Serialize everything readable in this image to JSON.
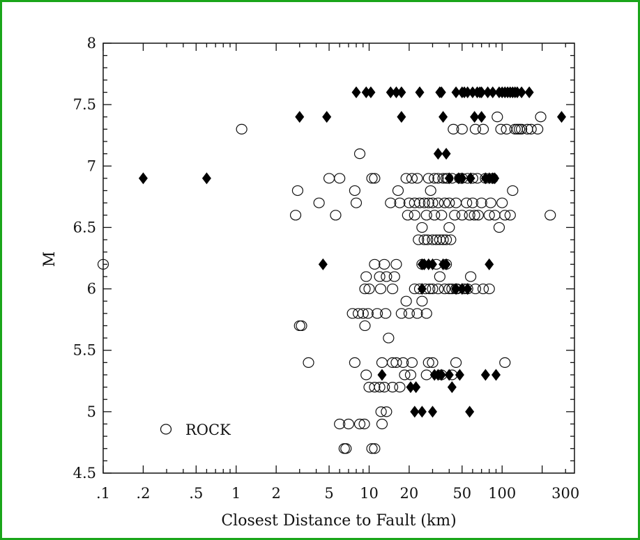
{
  "colors": {
    "frame": "#1aa51a",
    "ink": "#111111",
    "marker_fill": "#000000"
  },
  "chart_data": {
    "type": "scatter",
    "title": "",
    "xlabel": "Closest Distance to Fault (km)",
    "ylabel": "M",
    "xscale": "log",
    "xlim": [
      0.1,
      350
    ],
    "ylim": [
      4.5,
      8
    ],
    "grid": false,
    "legend": {
      "position": "bottom-left",
      "entries": [
        {
          "name": "ROCK",
          "marker": "open-circle"
        }
      ]
    },
    "x_tick_labels": [
      {
        "value": 0.1,
        "label": ".1"
      },
      {
        "value": 0.2,
        "label": ".2"
      },
      {
        "value": 0.5,
        "label": ".5"
      },
      {
        "value": 1,
        "label": "1"
      },
      {
        "value": 2,
        "label": "2"
      },
      {
        "value": 5,
        "label": "5"
      },
      {
        "value": 10,
        "label": "10"
      },
      {
        "value": 20,
        "label": "20"
      },
      {
        "value": 50,
        "label": "50"
      },
      {
        "value": 100,
        "label": "100"
      },
      {
        "value": 300,
        "label": "300"
      }
    ],
    "y_tick_labels": [
      {
        "value": 4.5,
        "label": "4.5"
      },
      {
        "value": 5,
        "label": "5"
      },
      {
        "value": 5.5,
        "label": "5.5"
      },
      {
        "value": 6,
        "label": "6"
      },
      {
        "value": 6.5,
        "label": "6.5"
      },
      {
        "value": 7,
        "label": "7"
      },
      {
        "value": 7.5,
        "label": "7.5"
      },
      {
        "value": 8,
        "label": "8"
      }
    ],
    "series": [
      {
        "name": "ROCK",
        "marker": "open-circle",
        "points": [
          [
            0.1,
            6.2
          ],
          [
            1.1,
            7.3
          ],
          [
            2.8,
            6.6
          ],
          [
            2.9,
            6.8
          ],
          [
            3,
            5.7
          ],
          [
            3.1,
            5.7
          ],
          [
            3.5,
            5.4
          ],
          [
            4.2,
            6.7
          ],
          [
            5,
            6.9
          ],
          [
            5.6,
            6.6
          ],
          [
            6,
            6.9
          ],
          [
            6,
            4.9
          ],
          [
            7,
            4.9
          ],
          [
            7.5,
            5.8
          ],
          [
            6.5,
            4.7
          ],
          [
            6.7,
            4.7
          ],
          [
            7.8,
            5.4
          ],
          [
            7.8,
            6.8
          ],
          [
            8,
            6.7
          ],
          [
            8.5,
            7.1
          ],
          [
            8.3,
            5.8
          ],
          [
            8.5,
            4.9
          ],
          [
            9,
            5.8
          ],
          [
            9.2,
            4.9
          ],
          [
            9.3,
            6
          ],
          [
            9.3,
            5.7
          ],
          [
            9.5,
            6.1
          ],
          [
            9.5,
            5.3
          ],
          [
            9.8,
            5.8
          ],
          [
            10,
            6
          ],
          [
            10,
            5.2
          ],
          [
            10.5,
            6.9
          ],
          [
            10.5,
            4.7
          ],
          [
            11,
            5.2
          ],
          [
            11,
            6.9
          ],
          [
            11,
            4.7
          ],
          [
            11,
            6.2
          ],
          [
            11.5,
            5.8
          ],
          [
            12,
            5.2
          ],
          [
            12,
            6.1
          ],
          [
            12.2,
            6
          ],
          [
            12.3,
            5
          ],
          [
            12.5,
            5.4
          ],
          [
            12.5,
            4.9
          ],
          [
            13,
            5.2
          ],
          [
            13,
            6.2
          ],
          [
            13.3,
            5.8
          ],
          [
            13.5,
            5
          ],
          [
            13.5,
            6.1
          ],
          [
            14,
            5.6
          ],
          [
            14.5,
            6.7
          ],
          [
            15,
            6
          ],
          [
            15,
            5.4
          ],
          [
            15,
            5.2
          ],
          [
            15.5,
            6.1
          ],
          [
            16,
            6.2
          ],
          [
            16,
            5.4
          ],
          [
            16.5,
            6.8
          ],
          [
            17,
            5.2
          ],
          [
            17,
            6.7
          ],
          [
            17.5,
            5.8
          ],
          [
            18,
            5.4
          ],
          [
            18.5,
            5.3
          ],
          [
            19,
            6.9
          ],
          [
            19,
            5.9
          ],
          [
            19.5,
            6.6
          ],
          [
            20,
            6.7
          ],
          [
            20,
            5.8
          ],
          [
            20.5,
            5.3
          ],
          [
            21,
            6.9
          ],
          [
            21,
            5.4
          ],
          [
            22,
            6.6
          ],
          [
            22,
            6
          ],
          [
            22,
            6.7
          ],
          [
            23,
            6.9
          ],
          [
            23,
            5.8
          ],
          [
            23.5,
            6.4
          ],
          [
            24,
            6.7
          ],
          [
            24,
            6
          ],
          [
            25,
            6.2
          ],
          [
            25,
            6.5
          ],
          [
            25,
            5.9
          ],
          [
            26,
            6.7
          ],
          [
            26,
            6.4
          ],
          [
            26.5,
            6
          ],
          [
            27,
            6.6
          ],
          [
            27,
            5.8
          ],
          [
            27,
            5.3
          ],
          [
            27.5,
            6.4
          ],
          [
            28,
            6.9
          ],
          [
            28,
            6.7
          ],
          [
            28,
            5.4
          ],
          [
            28.5,
            6
          ],
          [
            29,
            6.8
          ],
          [
            30,
            6.7
          ],
          [
            30,
            6.4
          ],
          [
            30,
            6
          ],
          [
            30,
            5.4
          ],
          [
            31,
            6.6
          ],
          [
            31,
            6.9
          ],
          [
            32,
            6.2
          ],
          [
            32,
            6.4
          ],
          [
            33,
            6
          ],
          [
            33,
            6.7
          ],
          [
            33,
            6.9
          ],
          [
            34,
            6.1
          ],
          [
            34,
            6.4
          ],
          [
            35,
            5.3
          ],
          [
            35,
            6.6
          ],
          [
            36,
            6.9
          ],
          [
            36,
            6.4
          ],
          [
            37,
            6.7
          ],
          [
            37,
            6
          ],
          [
            38,
            6.2
          ],
          [
            38,
            6.4
          ],
          [
            38,
            6.9
          ],
          [
            39,
            6.9
          ],
          [
            40,
            6.7
          ],
          [
            40,
            6
          ],
          [
            40,
            6.5
          ],
          [
            41,
            6.4
          ],
          [
            42,
            6
          ],
          [
            42,
            6.9
          ],
          [
            42,
            5.3
          ],
          [
            43,
            7.3
          ],
          [
            44,
            6.6
          ],
          [
            45,
            6.7
          ],
          [
            45,
            5.4
          ],
          [
            45,
            6
          ],
          [
            46,
            6
          ],
          [
            48,
            6.9
          ],
          [
            50,
            7.3
          ],
          [
            50,
            6.6
          ],
          [
            50,
            6.9
          ],
          [
            52,
            6
          ],
          [
            54,
            6.7
          ],
          [
            55,
            6.9
          ],
          [
            55,
            6
          ],
          [
            57,
            6.6
          ],
          [
            58,
            6.1
          ],
          [
            60,
            6.7
          ],
          [
            60,
            6.9
          ],
          [
            62,
            6.6
          ],
          [
            63,
            7.3
          ],
          [
            63,
            6
          ],
          [
            65,
            6.9
          ],
          [
            66,
            6.6
          ],
          [
            70,
            6.7
          ],
          [
            72,
            6
          ],
          [
            72,
            7.3
          ],
          [
            75,
            6.9
          ],
          [
            80,
            6.6
          ],
          [
            80,
            6
          ],
          [
            82,
            6.7
          ],
          [
            85,
            6.9
          ],
          [
            88,
            6.6
          ],
          [
            92,
            7.4
          ],
          [
            95,
            6.5
          ],
          [
            98,
            7.3
          ],
          [
            100,
            6.7
          ],
          [
            105,
            6.6
          ],
          [
            105,
            5.4
          ],
          [
            108,
            7.3
          ],
          [
            115,
            6.6
          ],
          [
            120,
            6.8
          ],
          [
            125,
            7.3
          ],
          [
            130,
            7.3
          ],
          [
            135,
            7.3
          ],
          [
            140,
            7.3
          ],
          [
            155,
            7.3
          ],
          [
            165,
            7.3
          ],
          [
            185,
            7.3
          ],
          [
            195,
            7.4
          ],
          [
            230,
            6.6
          ]
        ]
      },
      {
        "name": "",
        "marker": "filled-diamond",
        "points": [
          [
            0.2,
            6.9
          ],
          [
            0.6,
            6.9
          ],
          [
            3,
            7.4
          ],
          [
            4.5,
            6.2
          ],
          [
            4.8,
            7.4
          ],
          [
            8,
            7.6
          ],
          [
            9.5,
            7.6
          ],
          [
            10.3,
            7.6
          ],
          [
            12.5,
            5.3
          ],
          [
            14.5,
            7.6
          ],
          [
            16,
            7.6
          ],
          [
            17.5,
            7.6
          ],
          [
            17.5,
            7.4
          ],
          [
            20.5,
            5.2
          ],
          [
            22,
            5
          ],
          [
            22.5,
            5.2
          ],
          [
            24,
            7.6
          ],
          [
            25,
            6.2
          ],
          [
            25,
            5
          ],
          [
            25,
            6
          ],
          [
            26,
            6.2
          ],
          [
            28,
            6.2
          ],
          [
            30,
            5
          ],
          [
            30,
            6.2
          ],
          [
            31,
            5.3
          ],
          [
            33,
            7.1
          ],
          [
            33,
            5.3
          ],
          [
            34,
            7.6
          ],
          [
            35,
            7.6
          ],
          [
            35,
            5.3
          ],
          [
            36,
            6.2
          ],
          [
            36,
            7.4
          ],
          [
            38,
            7.1
          ],
          [
            38,
            6.2
          ],
          [
            40,
            5.3
          ],
          [
            40,
            6.9
          ],
          [
            42,
            5.2
          ],
          [
            45,
            6
          ],
          [
            45,
            7.6
          ],
          [
            47,
            6.9
          ],
          [
            48,
            5.3
          ],
          [
            50,
            6
          ],
          [
            50,
            6.9
          ],
          [
            50,
            7.6
          ],
          [
            52,
            7.6
          ],
          [
            55,
            6
          ],
          [
            55,
            7.6
          ],
          [
            57,
            5
          ],
          [
            58,
            6.9
          ],
          [
            60,
            7.6
          ],
          [
            62,
            7.4
          ],
          [
            65,
            7.6
          ],
          [
            68,
            7.6
          ],
          [
            70,
            7.6
          ],
          [
            70,
            7.4
          ],
          [
            75,
            6.9
          ],
          [
            75,
            5.3
          ],
          [
            78,
            7.6
          ],
          [
            80,
            6.2
          ],
          [
            80,
            6.9
          ],
          [
            85,
            6.9
          ],
          [
            85,
            7.6
          ],
          [
            88,
            6.9
          ],
          [
            90,
            5.3
          ],
          [
            95,
            7.6
          ],
          [
            100,
            7.6
          ],
          [
            105,
            7.6
          ],
          [
            110,
            7.6
          ],
          [
            115,
            7.6
          ],
          [
            120,
            7.6
          ],
          [
            125,
            7.6
          ],
          [
            130,
            7.6
          ],
          [
            140,
            7.6
          ],
          [
            160,
            7.6
          ],
          [
            280,
            7.4
          ]
        ]
      }
    ]
  }
}
